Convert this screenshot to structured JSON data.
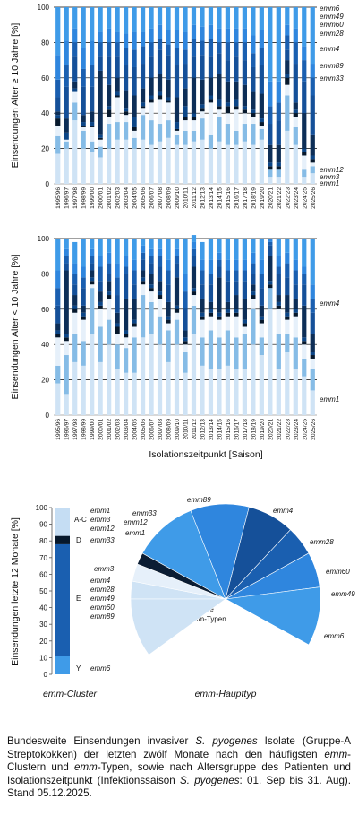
{
  "seasons": [
    "1995/96",
    "1996/97",
    "1997/98",
    "1998/99",
    "1999/00",
    "2000/01",
    "2001/02",
    "2002/03",
    "2003/04",
    "2004/05",
    "2005/06",
    "2006/07",
    "2007/08",
    "2008/09",
    "2009/10",
    "2010/11",
    "2011/12",
    "2012/13",
    "2013/14",
    "2014/15",
    "2015/16",
    "2016/17",
    "2017/18",
    "2018/19",
    "2019/20",
    "2020/21",
    "2021/22",
    "2022/23",
    "2023/24",
    "2024/25",
    "2025/26"
  ],
  "colors": {
    "emm1": "#cfe3f5",
    "emm3": "#86bce6",
    "emm12": "#e6f0fa",
    "emm6": "#3f9be8",
    "emm49": "#2f86de",
    "emm60": "#1a5fb0",
    "emm28": "#155099",
    "emm4": "#0d2e57",
    "emm89": "#0c4687",
    "emm33": "#06182c",
    "emm3b": "#c5ddf3",
    "emm33pie": "#0b1d33",
    "weitere": "#ffffff",
    "grid": "#000000",
    "axis": "#555555"
  },
  "chart_data": [
    {
      "type": "bar",
      "ylabel": "Einsendungen Alter ≥ 10 Jahre [%]",
      "ylim": [
        0,
        100
      ],
      "yticks": [
        0,
        20,
        40,
        60,
        80,
        100
      ],
      "grid": true,
      "legend_labels": [
        "emm6",
        "emm49",
        "emm60",
        "emm28",
        "emm4",
        "emm89",
        "emm33",
        "emm12",
        "emm3",
        "emm1"
      ],
      "series": [
        {
          "name": "emm1",
          "key": "emm1",
          "values": [
            17,
            20,
            36,
            20,
            18,
            15,
            20,
            25,
            25,
            20,
            25,
            22,
            24,
            26,
            22,
            22,
            24,
            25,
            20,
            24,
            22,
            22,
            24,
            22,
            25,
            4,
            4,
            30,
            22,
            4,
            6
          ]
        },
        {
          "name": "emm3",
          "key": "emm3",
          "values": [
            10,
            4,
            10,
            10,
            6,
            6,
            14,
            10,
            10,
            6,
            14,
            14,
            10,
            10,
            6,
            8,
            6,
            12,
            8,
            14,
            12,
            8,
            10,
            12,
            6,
            4,
            4,
            20,
            10,
            4,
            4
          ]
        },
        {
          "name": "emm12",
          "key": "emm12",
          "values": [
            6,
            1,
            6,
            2,
            8,
            4,
            4,
            14,
            4,
            4,
            4,
            10,
            14,
            10,
            2,
            6,
            6,
            4,
            18,
            4,
            6,
            12,
            6,
            4,
            2,
            0,
            0,
            6,
            6,
            8,
            2
          ]
        },
        {
          "name": "emm33",
          "key": "emm33",
          "values": [
            4,
            0,
            0,
            1,
            1,
            1,
            4,
            1,
            2,
            2,
            1,
            2,
            2,
            1,
            1,
            2,
            2,
            2,
            2,
            2,
            4,
            2,
            2,
            2,
            2,
            2,
            2,
            4,
            2,
            2,
            2
          ]
        },
        {
          "name": "emm89",
          "key": "emm89",
          "values": [
            2,
            4,
            2,
            2,
            2,
            2,
            2,
            2,
            2,
            6,
            2,
            2,
            2,
            2,
            4,
            6,
            2,
            2,
            2,
            4,
            2,
            4,
            2,
            2,
            2,
            2,
            2,
            2,
            2,
            2,
            2
          ]
        },
        {
          "name": "emm4",
          "key": "emm4",
          "values": [
            2,
            8,
            4,
            4,
            6,
            36,
            12,
            8,
            10,
            12,
            8,
            10,
            10,
            10,
            14,
            10,
            20,
            14,
            10,
            14,
            12,
            10,
            12,
            10,
            14,
            10,
            10,
            8,
            4,
            20,
            12
          ]
        },
        {
          "name": "emm28",
          "key": "emm28",
          "values": [
            8,
            18,
            14,
            16,
            14,
            8,
            16,
            12,
            14,
            16,
            14,
            12,
            14,
            14,
            18,
            14,
            12,
            14,
            12,
            12,
            12,
            14,
            14,
            14,
            16,
            12,
            14,
            6,
            22,
            18,
            22
          ]
        },
        {
          "name": "emm60",
          "key": "emm60",
          "values": [
            10,
            12,
            8,
            10,
            12,
            8,
            8,
            8,
            10,
            10,
            10,
            8,
            6,
            6,
            10,
            8,
            10,
            8,
            10,
            6,
            10,
            8,
            10,
            8,
            10,
            10,
            10,
            8,
            12,
            12,
            10
          ]
        },
        {
          "name": "emm49",
          "key": "emm49",
          "values": [
            14,
            14,
            8,
            12,
            14,
            6,
            8,
            6,
            8,
            10,
            8,
            8,
            8,
            8,
            10,
            10,
            8,
            8,
            8,
            8,
            8,
            8,
            8,
            10,
            10,
            14,
            12,
            6,
            8,
            8,
            8
          ]
        },
        {
          "name": "emm6",
          "key": "emm6",
          "values": [
            27,
            19,
            12,
            23,
            19,
            14,
            12,
            14,
            15,
            14,
            14,
            12,
            10,
            13,
            13,
            14,
            10,
            11,
            10,
            12,
            12,
            12,
            12,
            16,
            13,
            42,
            42,
            10,
            12,
            22,
            32
          ]
        }
      ]
    },
    {
      "type": "bar",
      "ylabel": "Einsendungen Alter < 10 Jahre [%]",
      "xlabel": "Isolationszeitpunkt [Saison]",
      "ylim": [
        0,
        100
      ],
      "yticks": [
        0,
        20,
        40,
        60,
        80,
        100
      ],
      "grid": true,
      "legend_labels": [
        "emm4",
        "emm1"
      ],
      "series": [
        {
          "name": "emm1",
          "key": "emm1",
          "values": [
            18,
            12,
            30,
            28,
            46,
            30,
            40,
            26,
            24,
            24,
            44,
            46,
            40,
            30,
            40,
            24,
            46,
            28,
            26,
            26,
            28,
            26,
            26,
            40,
            34,
            60,
            26,
            36,
            26,
            22,
            14
          ]
        },
        {
          "name": "emm3",
          "key": "emm3",
          "values": [
            10,
            22,
            16,
            14,
            26,
            20,
            14,
            14,
            14,
            20,
            24,
            18,
            16,
            18,
            14,
            12,
            16,
            16,
            22,
            18,
            20,
            18,
            20,
            20,
            10,
            12,
            20,
            10,
            18,
            10,
            12
          ]
        },
        {
          "name": "emm12",
          "key": "emm12",
          "values": [
            16,
            8,
            12,
            12,
            2,
            10,
            12,
            6,
            6,
            6,
            6,
            6,
            10,
            4,
            4,
            4,
            6,
            10,
            8,
            10,
            8,
            12,
            4,
            6,
            8,
            0,
            14,
            8,
            12,
            8,
            6
          ]
        },
        {
          "name": "emm33",
          "key": "emm33",
          "values": [
            2,
            2,
            2,
            2,
            2,
            2,
            2,
            4,
            2,
            2,
            2,
            2,
            2,
            2,
            2,
            2,
            2,
            2,
            2,
            2,
            2,
            2,
            2,
            2,
            2,
            2,
            2,
            2,
            2,
            2,
            2
          ]
        },
        {
          "name": "emm89",
          "key": "emm89",
          "values": [
            2,
            2,
            2,
            2,
            2,
            2,
            2,
            2,
            2,
            2,
            2,
            2,
            2,
            2,
            2,
            2,
            2,
            2,
            2,
            2,
            2,
            2,
            2,
            2,
            2,
            2,
            2,
            2,
            2,
            2,
            2
          ]
        },
        {
          "name": "emm4",
          "key": "emm4",
          "values": [
            4,
            36,
            6,
            4,
            4,
            6,
            6,
            6,
            18,
            12,
            4,
            6,
            6,
            8,
            16,
            4,
            12,
            8,
            4,
            20,
            4,
            8,
            12,
            4,
            6,
            14,
            4,
            10,
            6,
            18,
            10
          ]
        },
        {
          "name": "emm28",
          "key": "emm28",
          "values": [
            10,
            4,
            6,
            10,
            4,
            6,
            4,
            10,
            14,
            8,
            6,
            6,
            8,
            10,
            8,
            12,
            6,
            8,
            10,
            6,
            12,
            8,
            10,
            6,
            10,
            6,
            12,
            10,
            8,
            12,
            12
          ]
        },
        {
          "name": "emm60",
          "key": "emm60",
          "values": [
            10,
            4,
            6,
            6,
            4,
            8,
            6,
            10,
            4,
            8,
            4,
            4,
            6,
            8,
            4,
            10,
            4,
            8,
            6,
            4,
            6,
            6,
            6,
            6,
            8,
            2,
            4,
            8,
            8,
            6,
            8
          ]
        },
        {
          "name": "emm49",
          "key": "emm49",
          "values": [
            10,
            4,
            6,
            6,
            4,
            6,
            6,
            8,
            6,
            6,
            4,
            4,
            4,
            6,
            4,
            10,
            4,
            6,
            8,
            4,
            6,
            6,
            6,
            6,
            8,
            2,
            6,
            6,
            6,
            4,
            8
          ]
        },
        {
          "name": "emm6",
          "key": "emm6",
          "values": [
            18,
            6,
            12,
            16,
            6,
            10,
            8,
            14,
            10,
            12,
            4,
            6,
            6,
            12,
            6,
            20,
            4,
            10,
            12,
            8,
            12,
            12,
            12,
            8,
            12,
            0,
            10,
            8,
            12,
            16,
            26
          ]
        }
      ]
    },
    {
      "type": "bar",
      "ylabel": "Einsendungen letzte 12 Monate [%]",
      "xlabel": "emm-Cluster",
      "ylim": [
        0,
        100
      ],
      "yticks": [
        0,
        10,
        20,
        30,
        40,
        50,
        60,
        70,
        80,
        90,
        100
      ],
      "series": [
        {
          "name": "Y",
          "key": "emm6",
          "values": [
            11
          ]
        },
        {
          "name": "E",
          "key": "emm60",
          "values": [
            67
          ]
        },
        {
          "name": "D",
          "key": "emm33",
          "values": [
            5
          ]
        },
        {
          "name": "A-C",
          "key": "emm3b",
          "values": [
            17
          ]
        }
      ],
      "segment_labels": [
        "Y",
        "E",
        "D",
        "A-C"
      ],
      "type_labels": {
        "Y": [
          "emm6"
        ],
        "E": [
          "emm4",
          "emm28",
          "emm49",
          "emm60",
          "emm89"
        ],
        "D": [
          "emm33"
        ],
        "A-C": [
          "emm1",
          "emm3",
          "emm12"
        ]
      }
    },
    {
      "type": "pie",
      "xlabel": "emm-Haupttyp",
      "weitere_label": [
        "weitere",
        "56 emm-Typen"
      ],
      "slices": [
        {
          "name": "emm1",
          "key": "emm1",
          "value": 3
        },
        {
          "name": "emm12",
          "key": "emm12",
          "value": 3
        },
        {
          "name": "emm33",
          "key": "emm33pie",
          "value": 2
        },
        {
          "name": "emm89",
          "key": "emm6",
          "value": 11
        },
        {
          "name": "emm4",
          "key": "emm49",
          "value": 10
        },
        {
          "name": "emm28",
          "key": "emm28",
          "value": 8
        },
        {
          "name": "emm60",
          "key": "emm60",
          "value": 5
        },
        {
          "name": "emm49",
          "key": "emm49",
          "value": 6
        },
        {
          "name": "emm6",
          "key": "emm6",
          "value": 10
        },
        {
          "name": "weitere",
          "key": "weitere",
          "value": 32
        },
        {
          "name": "emm3",
          "key": "emm1",
          "value": 10
        }
      ]
    }
  ],
  "caption": {
    "p1": "Bundesweite Einsendungen invasiver ",
    "species": "S. pyogenes",
    "p2": " Isolate (Gruppe-A Streptokokken) der letzten zwölf Monate nach den häufigsten ",
    "emm1": "emm",
    "p3": "-Clustern und ",
    "emm2": "emm",
    "p4": "-Typen, sowie nach Altersgruppe des Patienten und Isolationszeitpunkt (Infektionssaison ",
    "species2": "S. pyogenes",
    "p5": ": 01. Sep bis 31. Aug). Stand 05.12.2025."
  }
}
